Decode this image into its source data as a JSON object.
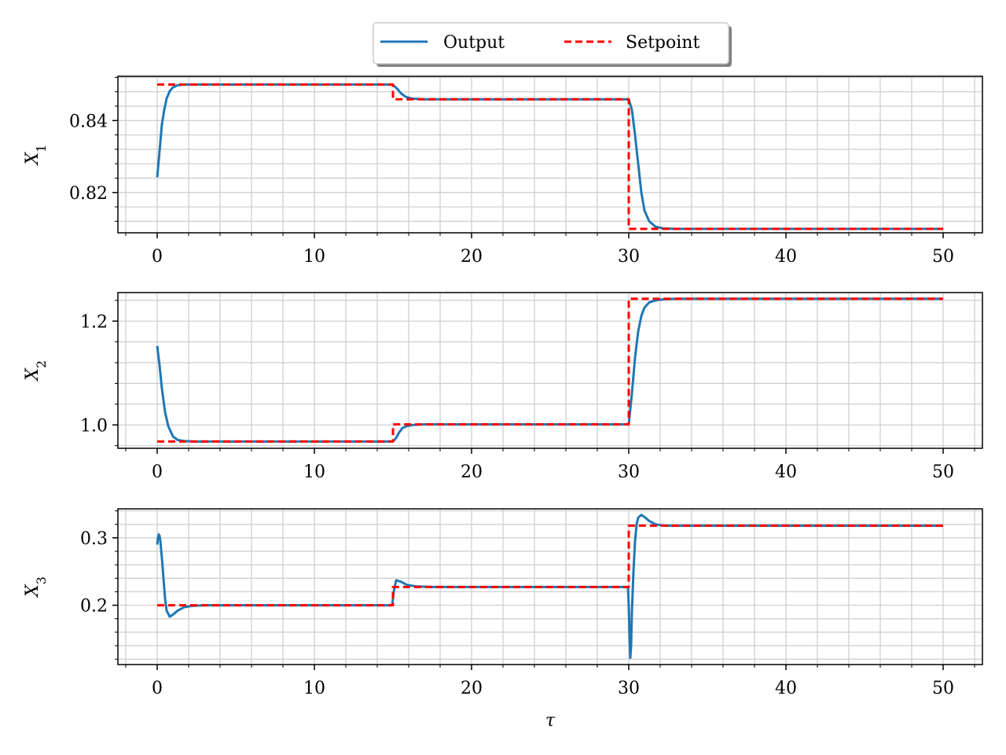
{
  "legend": {
    "location": "top-center",
    "entries": [
      {
        "label": "Output",
        "color": "#1f77b4",
        "style": "solid"
      },
      {
        "label": "Setpoint",
        "color": "#ff0000",
        "style": "dashed"
      }
    ]
  },
  "chart_data": [
    {
      "type": "line",
      "ylabel": "X1",
      "xlabel": "",
      "xlim": [
        -2.5,
        52.5
      ],
      "ylim": [
        0.8088,
        0.8523
      ],
      "xticks": [
        0,
        10,
        20,
        30,
        40,
        50
      ],
      "yticks": [
        0.82,
        0.84
      ],
      "ytick_labels": [
        "0.82",
        "0.84"
      ],
      "grid": true,
      "series": [
        {
          "name": "Output",
          "color": "#1f77b4",
          "x": [
            0,
            0.1,
            0.2,
            0.3,
            0.45,
            0.6,
            0.8,
            1.0,
            1.3,
            1.7,
            2.2,
            3,
            14.9,
            15.1,
            15.3,
            15.5,
            15.8,
            16.2,
            17,
            30,
            30.2,
            30.4,
            30.6,
            30.8,
            31.0,
            31.3,
            31.7,
            32.2,
            33,
            50
          ],
          "y": [
            0.8242,
            0.829,
            0.834,
            0.839,
            0.843,
            0.8461,
            0.8482,
            0.8492,
            0.8498,
            0.85,
            0.85,
            0.85,
            0.85,
            0.8495,
            0.8487,
            0.8476,
            0.8466,
            0.8461,
            0.8459,
            0.8459,
            0.843,
            0.836,
            0.828,
            0.82,
            0.815,
            0.812,
            0.8105,
            0.81,
            0.8099,
            0.8099
          ]
        },
        {
          "name": "Setpoint",
          "color": "#ff0000",
          "x": [
            0,
            15,
            15,
            30,
            30,
            50
          ],
          "y": [
            0.85,
            0.85,
            0.8459,
            0.8459,
            0.8099,
            0.8099
          ]
        }
      ]
    },
    {
      "type": "line",
      "ylabel": "X2",
      "xlabel": "",
      "xlim": [
        -2.5,
        52.5
      ],
      "ylim": [
        0.955,
        1.255
      ],
      "xticks": [
        0,
        10,
        20,
        30,
        40,
        50
      ],
      "yticks": [
        1.0,
        1.2
      ],
      "ytick_labels": [
        "1.0",
        "1.2"
      ],
      "grid": true,
      "series": [
        {
          "name": "Output",
          "color": "#1f77b4",
          "x": [
            0,
            0.15,
            0.3,
            0.5,
            0.7,
            1.0,
            1.3,
            1.7,
            2.3,
            3,
            15,
            15.2,
            15.4,
            15.6,
            15.9,
            16.3,
            17,
            30,
            30.2,
            30.4,
            30.6,
            30.8,
            31.0,
            31.3,
            31.7,
            32.2,
            33,
            50
          ],
          "y": [
            1.152,
            1.115,
            1.07,
            1.025,
            0.998,
            0.978,
            0.971,
            0.969,
            0.968,
            0.968,
            0.968,
            0.975,
            0.986,
            0.994,
            0.998,
            1.0,
            1.001,
            1.001,
            1.06,
            1.13,
            1.18,
            1.21,
            1.226,
            1.236,
            1.24,
            1.242,
            1.243,
            1.243
          ]
        },
        {
          "name": "Setpoint",
          "color": "#ff0000",
          "x": [
            0,
            15,
            15,
            30,
            30,
            50
          ],
          "y": [
            0.968,
            0.968,
            1.001,
            1.001,
            1.243,
            1.243
          ]
        }
      ]
    },
    {
      "type": "line",
      "ylabel": "X3",
      "xlabel": "τ",
      "xlim": [
        -2.5,
        52.5
      ],
      "ylim": [
        0.112,
        0.343
      ],
      "xticks": [
        0,
        10,
        20,
        30,
        40,
        50
      ],
      "yticks": [
        0.2,
        0.3
      ],
      "ytick_labels": [
        "0.2",
        "0.3"
      ],
      "grid": true,
      "series": [
        {
          "name": "Output",
          "color": "#1f77b4",
          "x": [
            0,
            0.05,
            0.1,
            0.15,
            0.2,
            0.3,
            0.4,
            0.5,
            0.6,
            0.8,
            1.0,
            1.3,
            1.7,
            2.2,
            3,
            14.95,
            15.05,
            15.2,
            15.5,
            15.9,
            16.5,
            17.5,
            29.95,
            30.0,
            30.05,
            30.1,
            30.15,
            30.2,
            30.3,
            30.4,
            30.5,
            30.6,
            30.8,
            31.0,
            31.3,
            31.7,
            32.3,
            33,
            50
          ],
          "y": [
            0.29,
            0.3,
            0.305,
            0.303,
            0.295,
            0.27,
            0.24,
            0.21,
            0.192,
            0.183,
            0.186,
            0.192,
            0.197,
            0.199,
            0.2,
            0.2,
            0.22,
            0.237,
            0.235,
            0.23,
            0.228,
            0.227,
            0.227,
            0.2,
            0.15,
            0.122,
            0.14,
            0.19,
            0.25,
            0.295,
            0.32,
            0.33,
            0.334,
            0.331,
            0.325,
            0.32,
            0.318,
            0.318,
            0.318
          ]
        },
        {
          "name": "Setpoint",
          "color": "#ff0000",
          "x": [
            0,
            15,
            15,
            30,
            30,
            50
          ],
          "y": [
            0.2,
            0.2,
            0.227,
            0.227,
            0.318,
            0.318
          ]
        }
      ]
    }
  ]
}
